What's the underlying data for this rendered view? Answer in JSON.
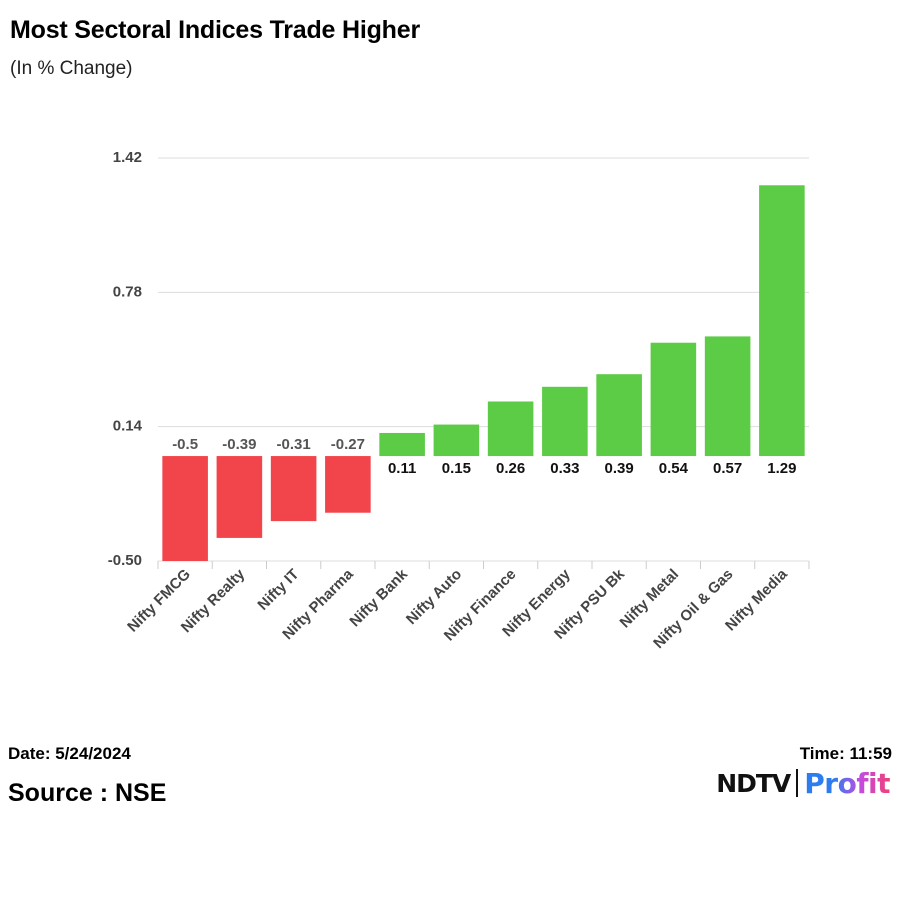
{
  "title": "Most Sectoral Indices Trade Higher",
  "subtitle": "(In % Change)",
  "footer": {
    "date": "Date: 5/24/2024",
    "source": "Source : NSE",
    "time": "Time: 11:59",
    "logo_ndtv": "NDTV",
    "logo_profit": "Profit"
  },
  "colors": {
    "negative": "#f2444b",
    "positive": "#5ccb45",
    "grid": "#dddddd"
  },
  "chart_data": {
    "type": "bar",
    "title": "Most Sectoral Indices Trade Higher",
    "ylabel": "(In % Change)",
    "xlabel": "",
    "ylim": [
      -0.5,
      1.42
    ],
    "yticks": [
      -0.5,
      0.14,
      0.78,
      1.42
    ],
    "ytick_labels": [
      "-0.50",
      "0.14",
      "0.78",
      "1.42"
    ],
    "categories": [
      "Nifty FMCG",
      "Nifty Realty",
      "Nifty IT",
      "Nifty Pharma",
      "Nifty Bank",
      "Nifty Auto",
      "Nifty Finance",
      "Nifty Energy",
      "Nifty PSU Bk",
      "Nifty Metal",
      "Nifty Oil & Gas",
      "Nifty Media"
    ],
    "values": [
      -0.5,
      -0.39,
      -0.31,
      -0.27,
      0.11,
      0.15,
      0.26,
      0.33,
      0.39,
      0.54,
      0.57,
      1.29
    ],
    "value_labels": [
      "-0.5",
      "-0.39",
      "-0.31",
      "-0.27",
      "0.11",
      "0.15",
      "0.26",
      "0.33",
      "0.39",
      "0.54",
      "0.57",
      "1.29"
    ]
  }
}
